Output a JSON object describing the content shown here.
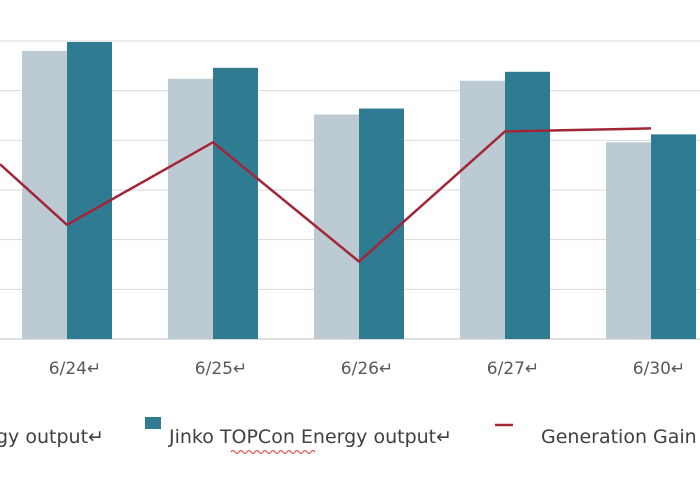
{
  "chart_data": {
    "type": "bar",
    "categories": [
      "6/24↵",
      "6/25↵",
      "6/26↵",
      "6/27↵",
      "6/30↵"
    ],
    "series": [
      {
        "name": "Energy output↵",
        "kind": "bar",
        "color": "#bccbd3",
        "values": [
          290,
          262,
          226,
          260,
          198
        ]
      },
      {
        "name": "Jinko TOPCon Energy output↵",
        "kind": "bar",
        "color": "#2e7b92",
        "values": [
          299,
          273,
          232,
          269,
          206
        ]
      },
      {
        "name": "Generation Gain",
        "kind": "line",
        "color": "#a32638",
        "values": [
          115,
          198,
          78,
          209,
          212
        ]
      }
    ],
    "line_lead_in_value": 176,
    "ylim": [
      0,
      300
    ],
    "grid": true,
    "legend_position": "bottom"
  },
  "legend": {
    "series1_label": "gy output↵",
    "series2_label": "Jinko TOPCon Energy output↵",
    "series3_label": "Generation Gain"
  }
}
